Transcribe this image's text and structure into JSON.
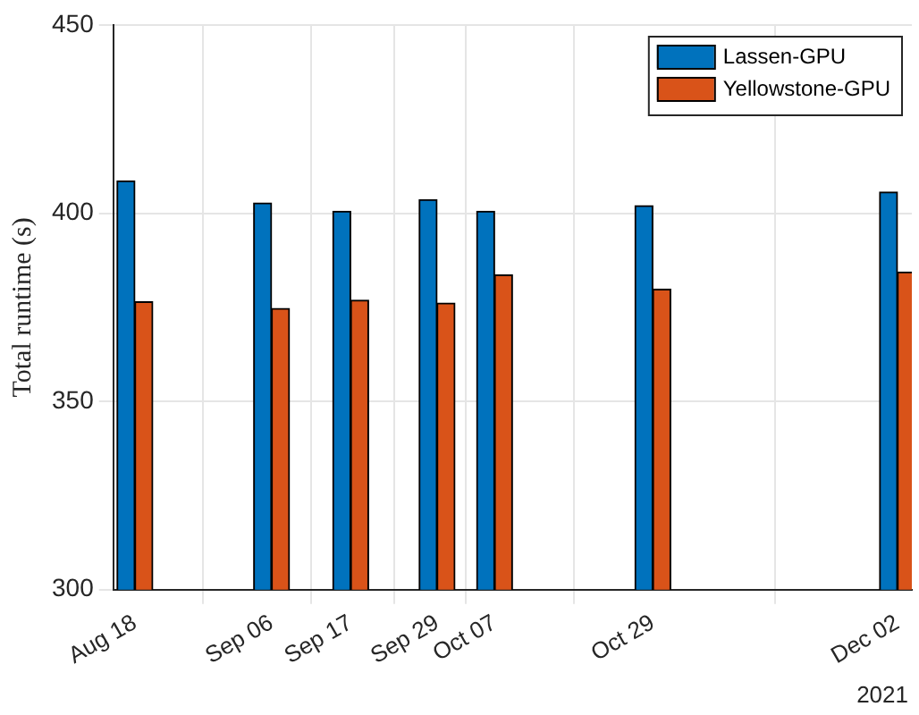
{
  "chart_data": {
    "type": "bar",
    "ylabel": "Total runtime (s)",
    "x": [
      "2021-08-18",
      "2021-09-06",
      "2021-09-17",
      "2021-09-29",
      "2021-10-07",
      "2021-10-29",
      "2021-12-02"
    ],
    "series": [
      {
        "name": "Lassen-GPU",
        "color": "#0072bd",
        "values": [
          408.6,
          402.7,
          400.5,
          403.6,
          400.5,
          402,
          405.6
        ]
      },
      {
        "name": "Yellowstone-GPU",
        "color": "#d95319",
        "values": [
          376.5,
          374.7,
          376.9,
          376.1,
          383.6,
          379.8,
          384.4
        ]
      }
    ],
    "xlim": [
      "2021-08-15",
      "2021-12-04"
    ],
    "xticks": [
      {
        "value": "2021-08-18",
        "label": "Aug 18"
      },
      {
        "value": "2021-09-06",
        "label": "Sep 06"
      },
      {
        "value": "2021-09-17",
        "label": "Sep 17"
      },
      {
        "value": "2021-09-29",
        "label": "Sep 29"
      },
      {
        "value": "2021-10-07",
        "label": "Oct 07"
      },
      {
        "value": "2021-10-29",
        "label": "Oct 29"
      },
      {
        "value": "2021-12-02",
        "label": "Dec 02"
      }
    ],
    "ylim": [
      300,
      450
    ],
    "yticks": [
      300,
      350,
      400,
      450
    ],
    "annotations": [
      "2021"
    ],
    "grid": true,
    "legend": "top right"
  }
}
